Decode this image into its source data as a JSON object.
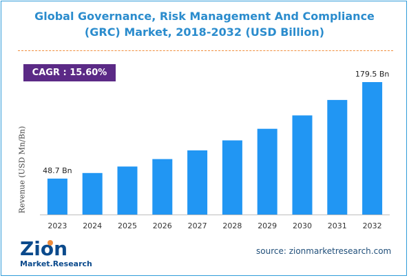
{
  "header": {
    "title_line1": "Global Governance, Risk Management And Compliance",
    "title_line2": "(GRC) Market, 2018-2032 (USD Billion)"
  },
  "badge": {
    "cagr": "CAGR : 15.60%"
  },
  "footer": {
    "source": "source: zionmarketresearch.com",
    "logo_text_top": "Zion",
    "logo_text_bottom": "Market.Research"
  },
  "colors": {
    "bar": "#2196f3",
    "title": "#2b8ccd",
    "badge": "#5b2a86",
    "divider": "#f08c3a"
  },
  "chart_data": {
    "type": "bar",
    "title": "Global Governance, Risk Management And Compliance (GRC) Market, 2018-2032 (USD Billion)",
    "xlabel": "",
    "ylabel": "Revenue (USD Mn/Bn)",
    "categories": [
      "2023",
      "2024",
      "2025",
      "2026",
      "2027",
      "2028",
      "2029",
      "2030",
      "2031",
      "2032"
    ],
    "values": [
      48.7,
      56.3,
      65.1,
      75.2,
      86.9,
      100.5,
      116.2,
      134.3,
      155.3,
      179.5
    ],
    "data_labels": [
      {
        "index": 0,
        "text": "48.7 Bn"
      },
      {
        "index": 9,
        "text": "179.5 Bn"
      }
    ],
    "ylim": [
      0,
      200
    ],
    "grid": false,
    "legend": "none"
  }
}
